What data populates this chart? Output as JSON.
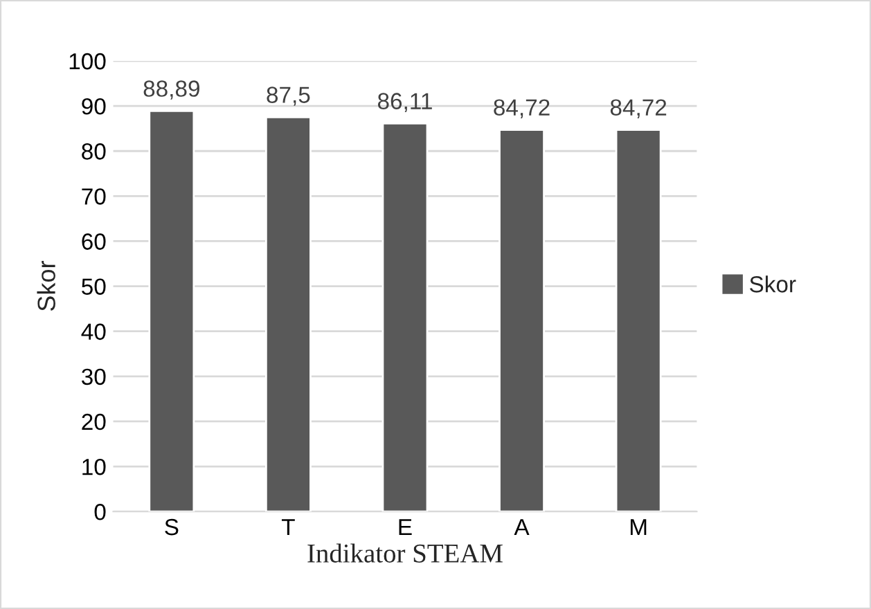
{
  "chart_data": {
    "type": "bar",
    "xlabel": "Indikator STEAM",
    "ylabel": "Skor",
    "categories": [
      "S",
      "T",
      "E",
      "A",
      "M"
    ],
    "series": [
      {
        "name": "Skor",
        "color": "#595959",
        "values": [
          88.89,
          87.5,
          86.11,
          84.72,
          84.72
        ],
        "value_labels": [
          "88,89",
          "87,5",
          "86,11",
          "84,72",
          "84,72"
        ]
      }
    ],
    "ylim": [
      0,
      100
    ],
    "yticks": [
      0,
      10,
      20,
      30,
      40,
      50,
      60,
      70,
      80,
      90,
      100
    ],
    "grid": "y",
    "legend": "right"
  }
}
